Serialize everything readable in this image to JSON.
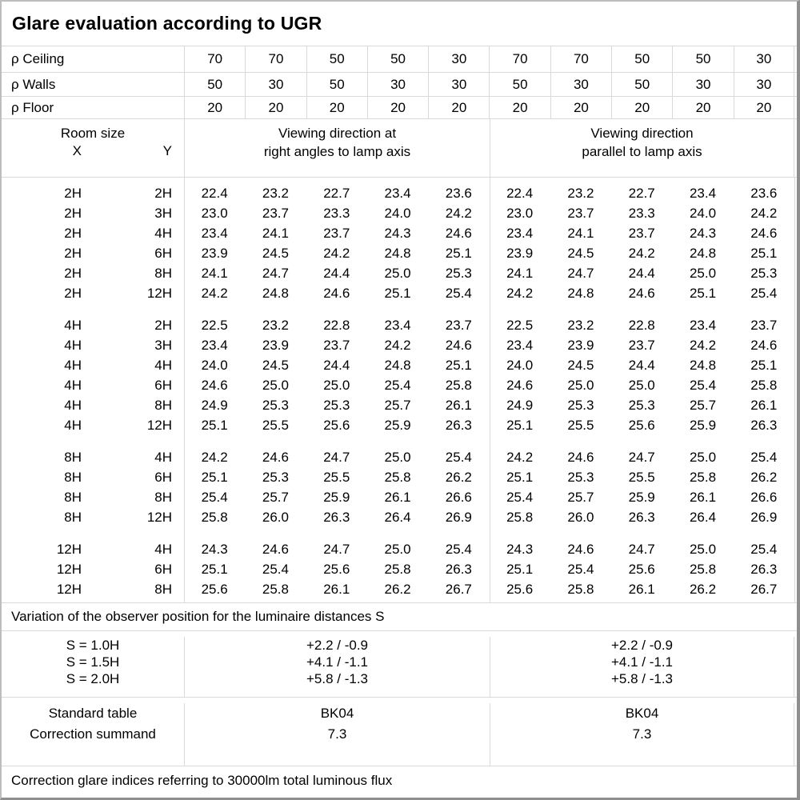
{
  "title": "Glare evaluation according to UGR",
  "reflectance_rows": [
    {
      "label": "ρ Ceiling",
      "values": [
        "70",
        "70",
        "50",
        "50",
        "30",
        "70",
        "70",
        "50",
        "50",
        "30"
      ]
    },
    {
      "label": "ρ Walls",
      "values": [
        "50",
        "30",
        "50",
        "30",
        "30",
        "50",
        "30",
        "50",
        "30",
        "30"
      ]
    },
    {
      "label": "ρ Floor",
      "values": [
        "20",
        "20",
        "20",
        "20",
        "20",
        "20",
        "20",
        "20",
        "20",
        "20"
      ]
    }
  ],
  "header": {
    "room_size_label": "Room size",
    "x_label": "X",
    "y_label": "Y",
    "left_heading_lines": [
      "Viewing direction at",
      "right angles to lamp axis"
    ],
    "right_heading_lines": [
      "Viewing direction",
      "parallel to lamp axis"
    ]
  },
  "groups": [
    {
      "rows": [
        {
          "x": "2H",
          "y": "2H",
          "values": [
            "22.4",
            "23.2",
            "22.7",
            "23.4",
            "23.6",
            "22.4",
            "23.2",
            "22.7",
            "23.4",
            "23.6"
          ]
        },
        {
          "x": "2H",
          "y": "3H",
          "values": [
            "23.0",
            "23.7",
            "23.3",
            "24.0",
            "24.2",
            "23.0",
            "23.7",
            "23.3",
            "24.0",
            "24.2"
          ]
        },
        {
          "x": "2H",
          "y": "4H",
          "values": [
            "23.4",
            "24.1",
            "23.7",
            "24.3",
            "24.6",
            "23.4",
            "24.1",
            "23.7",
            "24.3",
            "24.6"
          ]
        },
        {
          "x": "2H",
          "y": "6H",
          "values": [
            "23.9",
            "24.5",
            "24.2",
            "24.8",
            "25.1",
            "23.9",
            "24.5",
            "24.2",
            "24.8",
            "25.1"
          ]
        },
        {
          "x": "2H",
          "y": "8H",
          "values": [
            "24.1",
            "24.7",
            "24.4",
            "25.0",
            "25.3",
            "24.1",
            "24.7",
            "24.4",
            "25.0",
            "25.3"
          ]
        },
        {
          "x": "2H",
          "y": "12H",
          "values": [
            "24.2",
            "24.8",
            "24.6",
            "25.1",
            "25.4",
            "24.2",
            "24.8",
            "24.6",
            "25.1",
            "25.4"
          ]
        }
      ]
    },
    {
      "rows": [
        {
          "x": "4H",
          "y": "2H",
          "values": [
            "22.5",
            "23.2",
            "22.8",
            "23.4",
            "23.7",
            "22.5",
            "23.2",
            "22.8",
            "23.4",
            "23.7"
          ]
        },
        {
          "x": "4H",
          "y": "3H",
          "values": [
            "23.4",
            "23.9",
            "23.7",
            "24.2",
            "24.6",
            "23.4",
            "23.9",
            "23.7",
            "24.2",
            "24.6"
          ]
        },
        {
          "x": "4H",
          "y": "4H",
          "values": [
            "24.0",
            "24.5",
            "24.4",
            "24.8",
            "25.1",
            "24.0",
            "24.5",
            "24.4",
            "24.8",
            "25.1"
          ]
        },
        {
          "x": "4H",
          "y": "6H",
          "values": [
            "24.6",
            "25.0",
            "25.0",
            "25.4",
            "25.8",
            "24.6",
            "25.0",
            "25.0",
            "25.4",
            "25.8"
          ]
        },
        {
          "x": "4H",
          "y": "8H",
          "values": [
            "24.9",
            "25.3",
            "25.3",
            "25.7",
            "26.1",
            "24.9",
            "25.3",
            "25.3",
            "25.7",
            "26.1"
          ]
        },
        {
          "x": "4H",
          "y": "12H",
          "values": [
            "25.1",
            "25.5",
            "25.6",
            "25.9",
            "26.3",
            "25.1",
            "25.5",
            "25.6",
            "25.9",
            "26.3"
          ]
        }
      ]
    },
    {
      "rows": [
        {
          "x": "8H",
          "y": "4H",
          "values": [
            "24.2",
            "24.6",
            "24.7",
            "25.0",
            "25.4",
            "24.2",
            "24.6",
            "24.7",
            "25.0",
            "25.4"
          ]
        },
        {
          "x": "8H",
          "y": "6H",
          "values": [
            "25.1",
            "25.3",
            "25.5",
            "25.8",
            "26.2",
            "25.1",
            "25.3",
            "25.5",
            "25.8",
            "26.2"
          ]
        },
        {
          "x": "8H",
          "y": "8H",
          "values": [
            "25.4",
            "25.7",
            "25.9",
            "26.1",
            "26.6",
            "25.4",
            "25.7",
            "25.9",
            "26.1",
            "26.6"
          ]
        },
        {
          "x": "8H",
          "y": "12H",
          "values": [
            "25.8",
            "26.0",
            "26.3",
            "26.4",
            "26.9",
            "25.8",
            "26.0",
            "26.3",
            "26.4",
            "26.9"
          ]
        }
      ]
    },
    {
      "rows": [
        {
          "x": "12H",
          "y": "4H",
          "values": [
            "24.3",
            "24.6",
            "24.7",
            "25.0",
            "25.4",
            "24.3",
            "24.6",
            "24.7",
            "25.0",
            "25.4"
          ]
        },
        {
          "x": "12H",
          "y": "6H",
          "values": [
            "25.1",
            "25.4",
            "25.6",
            "25.8",
            "26.3",
            "25.1",
            "25.4",
            "25.6",
            "25.8",
            "26.3"
          ]
        },
        {
          "x": "12H",
          "y": "8H",
          "values": [
            "25.6",
            "25.8",
            "26.1",
            "26.2",
            "26.7",
            "25.6",
            "25.8",
            "26.1",
            "26.2",
            "26.7"
          ]
        }
      ]
    }
  ],
  "variation_note": "Variation of the observer position for the luminaire distances S",
  "s_variation": {
    "labels": [
      "S = 1.0H",
      "S = 1.5H",
      "S = 2.0H"
    ],
    "left_values": [
      "+2.2 / -0.9",
      "+4.1 / -1.1",
      "+5.8 / -1.3"
    ],
    "right_values": [
      "+2.2 / -0.9",
      "+4.1 / -1.1",
      "+5.8 / -1.3"
    ]
  },
  "summary": {
    "labels": [
      "Standard table",
      "Correction summand"
    ],
    "left_values": [
      "BK04",
      "7.3"
    ],
    "right_values": [
      "BK04",
      "7.3"
    ]
  },
  "footer_note": "Correction glare indices referring to 30000lm total luminous flux"
}
